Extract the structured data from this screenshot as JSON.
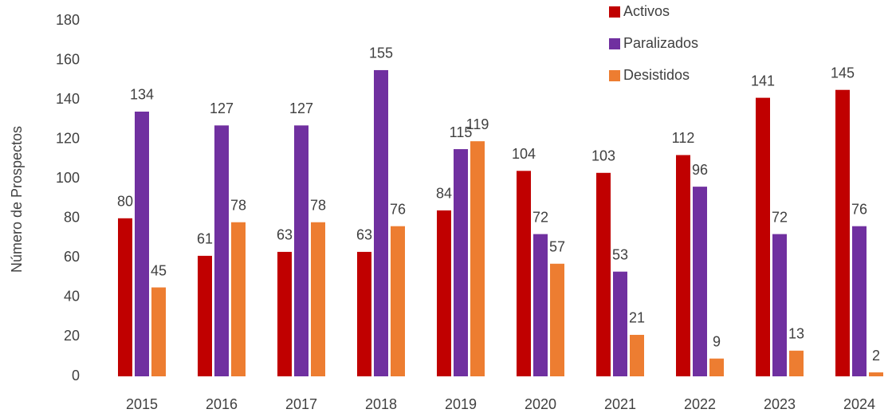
{
  "chart_data": {
    "type": "bar",
    "y_axis_label": "Número de Prospectos",
    "categories": [
      "2015",
      "2016",
      "2017",
      "2018",
      "2019",
      "2020",
      "2021",
      "2022",
      "2023",
      "2024"
    ],
    "series": [
      {
        "name": "Activos",
        "color": "#c00000",
        "values": [
          80,
          61,
          63,
          63,
          84,
          104,
          103,
          112,
          141,
          145
        ]
      },
      {
        "name": "Paralizados",
        "color": "#7030a0",
        "values": [
          134,
          127,
          127,
          155,
          115,
          72,
          53,
          96,
          72,
          76
        ]
      },
      {
        "name": "Desistidos",
        "color": "#ed7d31",
        "values": [
          45,
          78,
          78,
          76,
          119,
          57,
          21,
          9,
          13,
          2
        ]
      }
    ],
    "ylim": [
      0,
      180
    ],
    "yticks": [
      0,
      20,
      40,
      60,
      80,
      100,
      120,
      140,
      160,
      180
    ],
    "grid": false,
    "legend": "top-right"
  }
}
